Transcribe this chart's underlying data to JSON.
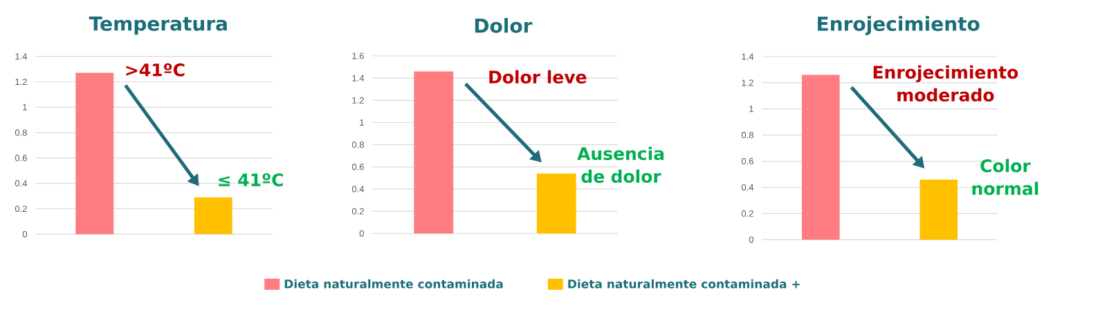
{
  "chart_data": [
    {
      "type": "bar",
      "title": "Temperatura",
      "categories": [
        null,
        null
      ],
      "series": [
        {
          "color": "#ff7c80",
          "values": [
            1.27,
            null
          ]
        },
        {
          "color": "#ffc000",
          "values": [
            null,
            0.29
          ]
        }
      ],
      "ylim": [
        0,
        1.4
      ],
      "yticks": [
        0,
        0.2,
        0.4,
        0.6,
        0.8,
        1,
        1.2,
        1.4
      ],
      "grid": "y",
      "annotations": [
        ">41ºC",
        "≤ 41ºC"
      ]
    },
    {
      "type": "bar",
      "title": "Dolor",
      "categories": [
        null,
        null
      ],
      "series": [
        {
          "name": "Dieta naturalmente contaminada",
          "color": "#ff7c80",
          "values": [
            1.46,
            null
          ]
        },
        {
          "name": "Dieta naturalmente contaminada +",
          "color": "#ffc000",
          "values": [
            null,
            0.54
          ]
        }
      ],
      "ylim": [
        0,
        1.6
      ],
      "yticks": [
        0,
        0.2,
        0.4,
        0.6,
        0.8,
        1,
        1.2,
        1.4,
        1.6
      ],
      "grid": "y",
      "legend": "bottom",
      "annotations": [
        "Dolor leve",
        "Ausencia de dolor"
      ]
    },
    {
      "type": "bar",
      "title": "Enrojecimiento",
      "categories": [
        null,
        null
      ],
      "series": [
        {
          "color": "#ff7c80",
          "values": [
            1.26,
            null
          ]
        },
        {
          "color": "#ffc000",
          "values": [
            null,
            0.46
          ]
        }
      ],
      "ylim": [
        0,
        1.4
      ],
      "yticks": [
        0,
        0.2,
        0.4,
        0.6,
        0.8,
        1,
        1.2,
        1.4
      ],
      "grid": "y",
      "annotations": [
        "Enrojecimiento moderado",
        "Color normal"
      ]
    }
  ]
}
